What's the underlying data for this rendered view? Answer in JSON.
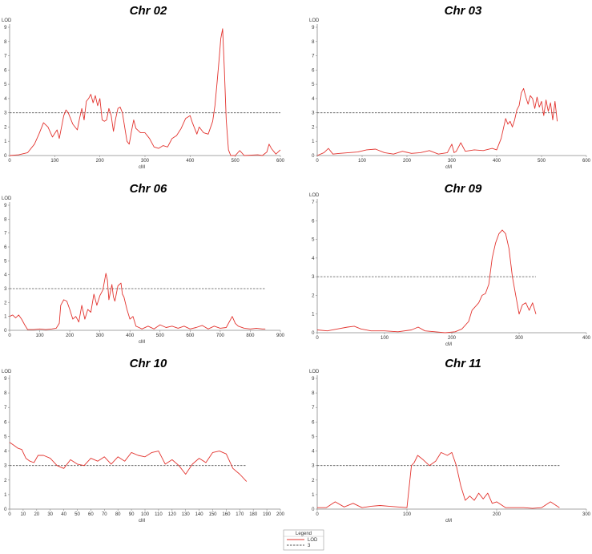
{
  "chart_data": [
    {
      "type": "line",
      "title": "Chr 02",
      "ylabel": "LOD",
      "xlabel": "cM",
      "xlim": [
        0,
        600
      ],
      "ylim": [
        0,
        9
      ],
      "xticks": [
        0,
        100,
        200,
        300,
        400,
        500,
        600
      ],
      "yticks": [
        0,
        1,
        2,
        3,
        4,
        5,
        6,
        7,
        8,
        9
      ],
      "threshold": 3,
      "threshold_end": 600,
      "series": [
        {
          "name": "LOD",
          "x": [
            0,
            20,
            40,
            55,
            65,
            75,
            85,
            95,
            105,
            110,
            120,
            125,
            130,
            140,
            150,
            155,
            160,
            165,
            170,
            175,
            180,
            185,
            190,
            195,
            200,
            205,
            210,
            215,
            220,
            225,
            230,
            235,
            240,
            245,
            250,
            260,
            265,
            270,
            275,
            280,
            290,
            300,
            310,
            320,
            330,
            340,
            350,
            355,
            360,
            370,
            380,
            390,
            400,
            405,
            410,
            415,
            420,
            430,
            440,
            450,
            455,
            460,
            465,
            468,
            472,
            476,
            480,
            485,
            490,
            500,
            510,
            520,
            550,
            560,
            570,
            575,
            580,
            590,
            600
          ],
          "y": [
            0,
            0.05,
            0.2,
            0.8,
            1.5,
            2.3,
            2.0,
            1.3,
            1.8,
            1.2,
            2.8,
            3.2,
            3.0,
            2.2,
            1.8,
            2.6,
            3.3,
            2.5,
            3.8,
            4.0,
            4.3,
            3.7,
            4.2,
            3.5,
            4.0,
            2.5,
            2.4,
            2.5,
            3.3,
            2.8,
            1.7,
            2.6,
            3.3,
            3.4,
            3.0,
            1.0,
            0.8,
            1.7,
            2.5,
            1.9,
            1.6,
            1.6,
            1.2,
            0.6,
            0.5,
            0.7,
            0.6,
            0.9,
            1.2,
            1.4,
            1.9,
            2.6,
            2.8,
            2.3,
            1.9,
            1.5,
            2.0,
            1.6,
            1.5,
            2.4,
            3.5,
            5.2,
            7.0,
            8.2,
            8.9,
            6.0,
            2.5,
            0.4,
            0.0,
            0.0,
            0.35,
            0.0,
            0.05,
            0.0,
            0.25,
            0.8,
            0.5,
            0.1,
            0.4
          ]
        }
      ]
    },
    {
      "type": "line",
      "title": "Chr 03",
      "ylabel": "LOD",
      "xlabel": "cM",
      "xlim": [
        0,
        600
      ],
      "ylim": [
        0,
        9
      ],
      "xticks": [
        0,
        100,
        200,
        300,
        400,
        500,
        600
      ],
      "yticks": [
        0,
        1,
        2,
        3,
        4,
        5,
        6,
        7,
        8,
        9
      ],
      "threshold": 3,
      "threshold_end": 535,
      "series": [
        {
          "name": "LOD",
          "x": [
            0,
            15,
            25,
            35,
            50,
            70,
            90,
            110,
            130,
            150,
            170,
            190,
            210,
            230,
            250,
            270,
            290,
            300,
            305,
            310,
            320,
            330,
            350,
            370,
            390,
            400,
            410,
            420,
            425,
            430,
            435,
            440,
            445,
            450,
            455,
            460,
            465,
            470,
            475,
            480,
            485,
            490,
            495,
            500,
            505,
            510,
            515,
            520,
            525,
            530,
            535
          ],
          "y": [
            0.0,
            0.2,
            0.5,
            0.1,
            0.15,
            0.2,
            0.25,
            0.4,
            0.45,
            0.2,
            0.1,
            0.3,
            0.15,
            0.2,
            0.35,
            0.1,
            0.2,
            0.8,
            0.2,
            0.3,
            0.9,
            0.3,
            0.4,
            0.35,
            0.5,
            0.4,
            1.2,
            2.6,
            2.2,
            2.4,
            2.0,
            2.5,
            3.2,
            3.5,
            4.4,
            4.7,
            4.1,
            3.6,
            4.2,
            4.0,
            3.3,
            4.1,
            3.4,
            3.8,
            2.8,
            3.9,
            3.1,
            3.7,
            2.5,
            3.8,
            2.4
          ]
        }
      ]
    },
    {
      "type": "line",
      "title": "Chr 06",
      "ylabel": "LOD",
      "xlabel": "cM",
      "xlim": [
        0,
        900
      ],
      "ylim": [
        0,
        9
      ],
      "xticks": [
        0,
        100,
        200,
        300,
        400,
        500,
        600,
        700,
        800,
        900
      ],
      "yticks": [
        0,
        1,
        2,
        3,
        4,
        5,
        6,
        7,
        8,
        9
      ],
      "threshold": 3,
      "threshold_end": 850,
      "series": [
        {
          "name": "LOD",
          "x": [
            0,
            10,
            20,
            30,
            40,
            50,
            60,
            80,
            100,
            120,
            140,
            155,
            165,
            170,
            180,
            190,
            200,
            210,
            220,
            230,
            240,
            250,
            260,
            270,
            280,
            290,
            300,
            310,
            320,
            325,
            330,
            340,
            345,
            350,
            360,
            370,
            375,
            380,
            390,
            400,
            410,
            420,
            430,
            440,
            460,
            480,
            500,
            520,
            540,
            560,
            580,
            600,
            620,
            640,
            660,
            680,
            700,
            720,
            740,
            750,
            760,
            780,
            800,
            820,
            840,
            850
          ],
          "y": [
            1.0,
            1.1,
            0.9,
            1.1,
            0.8,
            0.4,
            0.05,
            0.05,
            0.1,
            0.05,
            0.1,
            0.15,
            0.5,
            1.8,
            2.2,
            2.1,
            1.5,
            0.8,
            1.0,
            0.6,
            1.8,
            0.8,
            1.5,
            1.3,
            2.6,
            1.8,
            2.5,
            2.9,
            4.1,
            3.6,
            2.2,
            3.3,
            2.4,
            2.1,
            3.2,
            3.4,
            2.6,
            2.4,
            1.5,
            0.8,
            1.0,
            0.3,
            0.2,
            0.1,
            0.3,
            0.1,
            0.4,
            0.2,
            0.3,
            0.15,
            0.3,
            0.1,
            0.2,
            0.35,
            0.1,
            0.3,
            0.15,
            0.2,
            1.0,
            0.5,
            0.3,
            0.15,
            0.1,
            0.15,
            0.1,
            0.1
          ]
        }
      ]
    },
    {
      "type": "line",
      "title": "Chr 09",
      "ylabel": "LOD",
      "xlabel": "cM",
      "xlim": [
        0,
        400
      ],
      "ylim": [
        0,
        7
      ],
      "xticks": [
        0,
        100,
        200,
        300,
        400
      ],
      "yticks": [
        0,
        1,
        2,
        3,
        4,
        5,
        6,
        7
      ],
      "threshold": 3,
      "threshold_end": 325,
      "series": [
        {
          "name": "LOD",
          "x": [
            0,
            15,
            30,
            45,
            55,
            65,
            80,
            100,
            120,
            140,
            150,
            160,
            175,
            190,
            205,
            215,
            225,
            230,
            240,
            245,
            250,
            255,
            260,
            265,
            270,
            275,
            280,
            285,
            290,
            295,
            300,
            305,
            310,
            315,
            320,
            325
          ],
          "y": [
            0.15,
            0.1,
            0.2,
            0.3,
            0.35,
            0.2,
            0.1,
            0.1,
            0.05,
            0.15,
            0.3,
            0.1,
            0.05,
            0.0,
            0.05,
            0.2,
            0.6,
            1.2,
            1.6,
            2.0,
            2.1,
            2.6,
            4.0,
            4.8,
            5.3,
            5.5,
            5.3,
            4.5,
            3.0,
            2.0,
            1.0,
            1.5,
            1.6,
            1.2,
            1.6,
            1.0
          ]
        }
      ]
    },
    {
      "type": "line",
      "title": "Chr 10",
      "ylabel": "LOD",
      "xlabel": "cM",
      "xlim": [
        0,
        200
      ],
      "ylim": [
        0,
        9
      ],
      "xticks": [
        0,
        10,
        20,
        30,
        40,
        50,
        60,
        70,
        80,
        90,
        100,
        110,
        120,
        130,
        140,
        150,
        160,
        170,
        180,
        190,
        200
      ],
      "yticks": [
        0,
        1,
        2,
        3,
        4,
        5,
        6,
        7,
        8,
        9
      ],
      "threshold": 3,
      "threshold_end": 175,
      "series": [
        {
          "name": "LOD",
          "x": [
            0,
            3,
            6,
            9,
            12,
            15,
            18,
            21,
            25,
            30,
            35,
            40,
            45,
            50,
            55,
            60,
            65,
            70,
            75,
            80,
            85,
            90,
            95,
            100,
            105,
            110,
            115,
            120,
            125,
            130,
            135,
            140,
            145,
            150,
            155,
            160,
            165,
            170,
            175
          ],
          "y": [
            4.6,
            4.4,
            4.2,
            4.1,
            3.5,
            3.3,
            3.2,
            3.7,
            3.7,
            3.5,
            3.0,
            2.8,
            3.4,
            3.1,
            3.0,
            3.5,
            3.3,
            3.6,
            3.1,
            3.6,
            3.3,
            3.9,
            3.7,
            3.6,
            3.9,
            4.0,
            3.1,
            3.4,
            3.0,
            2.4,
            3.1,
            3.5,
            3.2,
            3.9,
            4.0,
            3.8,
            2.8,
            2.4,
            1.9
          ]
        }
      ]
    },
    {
      "type": "line",
      "title": "Chr 11",
      "ylabel": "LOD",
      "xlabel": "cM",
      "xlim": [
        0,
        300
      ],
      "ylim": [
        0,
        9
      ],
      "xticks": [
        0,
        100,
        200,
        300
      ],
      "yticks": [
        0,
        1,
        2,
        3,
        4,
        5,
        6,
        7,
        8,
        9
      ],
      "threshold": 3,
      "threshold_end": 270,
      "series": [
        {
          "name": "LOD",
          "x": [
            0,
            10,
            20,
            30,
            40,
            50,
            60,
            70,
            80,
            90,
            100,
            105,
            108,
            112,
            118,
            125,
            132,
            138,
            145,
            150,
            155,
            160,
            165,
            170,
            175,
            180,
            185,
            190,
            195,
            200,
            210,
            220,
            230,
            240,
            250,
            260,
            270
          ],
          "y": [
            0.1,
            0.1,
            0.5,
            0.15,
            0.4,
            0.1,
            0.2,
            0.25,
            0.2,
            0.15,
            0.1,
            3.0,
            3.2,
            3.7,
            3.4,
            3.0,
            3.3,
            3.9,
            3.7,
            3.9,
            3.0,
            1.6,
            0.6,
            0.9,
            0.6,
            1.1,
            0.7,
            1.1,
            0.4,
            0.5,
            0.1,
            0.1,
            0.1,
            0.05,
            0.1,
            0.5,
            0.1
          ]
        }
      ]
    }
  ],
  "legend": {
    "title": "Legend",
    "items": [
      {
        "label": "LOD",
        "color": "#e3342f",
        "style": "solid"
      },
      {
        "label": "3",
        "color": "#555555",
        "style": "dashed"
      }
    ]
  },
  "colors": {
    "lod_line": "#e3342f",
    "threshold_line": "#555555",
    "axis": "#888888"
  }
}
